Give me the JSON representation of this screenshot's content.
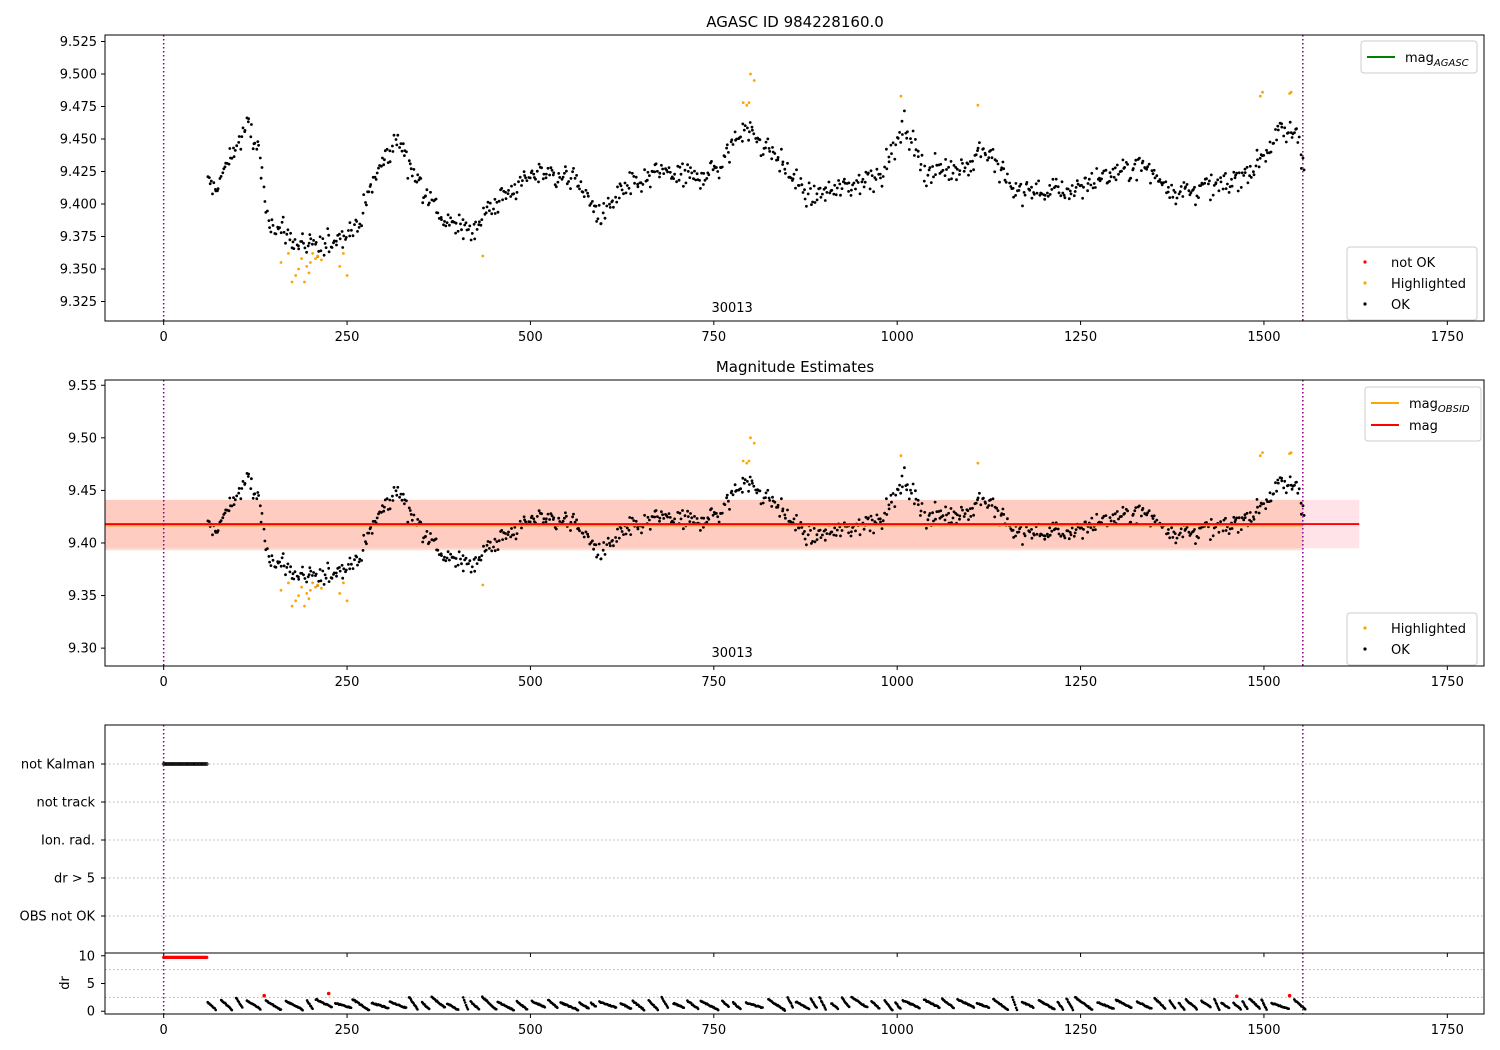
{
  "figure": {
    "title": "AGASC ID 984228160.0"
  },
  "colors": {
    "ok": "#000000",
    "highlighted": "#FFA500",
    "not_ok": "#FF0000",
    "mag_agasc": "#008000",
    "mag_obsid": "#FFA500",
    "mag": "#FF0000",
    "band_outer": "#FFC0CB",
    "band_inner": "#FFA07A",
    "obs_boundary": "#800080"
  },
  "chart_data": [
    {
      "type": "scatter",
      "title": "AGASC ID 984228160.0",
      "xlim": [
        -80,
        1800
      ],
      "ylim": [
        9.31,
        9.53
      ],
      "xticks": [
        0,
        250,
        500,
        750,
        1000,
        1250,
        1500,
        1750
      ],
      "yticks": [
        9.325,
        9.35,
        9.375,
        9.4,
        9.425,
        9.45,
        9.475,
        9.5,
        9.525
      ],
      "ytick_format": 3,
      "obsid_label": "30013",
      "obs_boundaries": [
        0,
        1553
      ],
      "legend_lines": [
        {
          "name": "mag",
          "subscript": "AGASC",
          "color": "#008000"
        }
      ],
      "legend_points": [
        "not OK",
        "Highlighted",
        "OK"
      ],
      "trend_knots": [
        [
          60,
          9.418
        ],
        [
          70,
          9.41
        ],
        [
          90,
          9.435
        ],
        [
          115,
          9.46
        ],
        [
          130,
          9.44
        ],
        [
          140,
          9.39
        ],
        [
          180,
          9.37
        ],
        [
          205,
          9.365
        ],
        [
          240,
          9.375
        ],
        [
          265,
          9.385
        ],
        [
          295,
          9.43
        ],
        [
          320,
          9.45
        ],
        [
          345,
          9.42
        ],
        [
          385,
          9.385
        ],
        [
          420,
          9.38
        ],
        [
          450,
          9.4
        ],
        [
          510,
          9.425
        ],
        [
          560,
          9.42
        ],
        [
          595,
          9.39
        ],
        [
          625,
          9.41
        ],
        [
          680,
          9.425
        ],
        [
          725,
          9.42
        ],
        [
          760,
          9.43
        ],
        [
          790,
          9.46
        ],
        [
          830,
          9.44
        ],
        [
          880,
          9.405
        ],
        [
          940,
          9.415
        ],
        [
          980,
          9.425
        ],
        [
          1010,
          9.46
        ],
        [
          1040,
          9.425
        ],
        [
          1100,
          9.43
        ],
        [
          1115,
          9.445
        ],
        [
          1160,
          9.41
        ],
        [
          1230,
          9.41
        ],
        [
          1280,
          9.42
        ],
        [
          1330,
          9.43
        ],
        [
          1380,
          9.41
        ],
        [
          1450,
          9.415
        ],
        [
          1490,
          9.43
        ],
        [
          1520,
          9.455
        ],
        [
          1545,
          9.455
        ],
        [
          1555,
          9.43
        ]
      ],
      "noise_amplitude": 0.011,
      "n_points": 900,
      "highlighted_points": [
        [
          160,
          9.355
        ],
        [
          170,
          9.362
        ],
        [
          180,
          9.345
        ],
        [
          184,
          9.35
        ],
        [
          188,
          9.358
        ],
        [
          192,
          9.34
        ],
        [
          195,
          9.352
        ],
        [
          198,
          9.347
        ],
        [
          200,
          9.355
        ],
        [
          203,
          9.362
        ],
        [
          207,
          9.358
        ],
        [
          210,
          9.36
        ],
        [
          215,
          9.357
        ],
        [
          175,
          9.34
        ],
        [
          240,
          9.352
        ],
        [
          245,
          9.362
        ],
        [
          250,
          9.345
        ],
        [
          435,
          9.36
        ],
        [
          790,
          9.478
        ],
        [
          795,
          9.476
        ],
        [
          798,
          9.478
        ],
        [
          800,
          9.5
        ],
        [
          805,
          9.495
        ],
        [
          1005,
          9.483
        ],
        [
          1110,
          9.476
        ],
        [
          1495,
          9.483
        ],
        [
          1498,
          9.486
        ],
        [
          1535,
          9.485
        ],
        [
          1537,
          9.486
        ]
      ],
      "not_ok_points": []
    },
    {
      "type": "scatter",
      "title": "Magnitude Estimates",
      "xlim": [
        -80,
        1800
      ],
      "ylim": [
        9.283,
        9.555
      ],
      "xticks": [
        0,
        250,
        500,
        750,
        1000,
        1250,
        1500,
        1750
      ],
      "yticks": [
        9.3,
        9.35,
        9.4,
        9.45,
        9.5,
        9.55
      ],
      "ytick_format": 2,
      "obsid_label": "30013",
      "obs_boundaries": [
        0,
        1553
      ],
      "mag_line": {
        "value": 9.418,
        "xrange": [
          -80,
          1630
        ],
        "band": [
          9.395,
          9.441
        ]
      },
      "mag_obsid_line": {
        "value": 9.417,
        "xrange": [
          -80,
          1553
        ],
        "band": [
          9.393,
          9.441
        ]
      },
      "legend_lines": [
        {
          "name": "mag",
          "subscript": "OBSID",
          "color": "#FFA500"
        },
        {
          "name": "mag",
          "subscript": "",
          "color": "#FF0000"
        }
      ],
      "legend_points": [
        "Highlighted",
        "OK"
      ],
      "same_points_as": 0
    },
    {
      "type": "scatter",
      "title": "",
      "xlim": [
        -80,
        1800
      ],
      "categories": [
        "not Kalman",
        "not track",
        "Ion. rad.",
        "dr > 5",
        "OBS not OK"
      ],
      "not_kalman_range": [
        0,
        60
      ],
      "obs_boundaries": [
        0,
        1553
      ]
    },
    {
      "type": "scatter",
      "title": "",
      "xlim": [
        -80,
        1800
      ],
      "ylim": [
        -0.5,
        10.5
      ],
      "xticks": [
        0,
        250,
        500,
        750,
        1000,
        1250,
        1500,
        1750
      ],
      "yticks": [
        0,
        5,
        10
      ],
      "ylabel": "dr",
      "flat_red_range": [
        0,
        60
      ],
      "flat_red_value": 9.7,
      "red_points": [
        [
          137,
          2.8
        ],
        [
          225,
          3.2
        ],
        [
          1463,
          2.7
        ],
        [
          1535,
          2.8
        ]
      ],
      "obs_boundaries": [
        0,
        1553
      ]
    }
  ]
}
